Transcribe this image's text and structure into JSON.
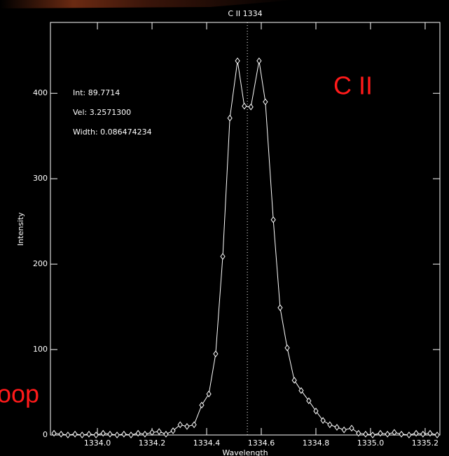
{
  "chart_data": {
    "type": "line",
    "title": "C II 1334",
    "xlabel": "Wavelength",
    "ylabel": "Intensity",
    "annotations": [
      "Int: 89.7714",
      "Vel: 3.2571300",
      "Width: 0.086474234"
    ],
    "overlay_texts": [
      "C II",
      "oop"
    ],
    "x": [
      1333.841,
      1333.867,
      1333.892,
      1333.918,
      1333.944,
      1333.969,
      1333.995,
      1334.021,
      1334.046,
      1334.072,
      1334.097,
      1334.123,
      1334.149,
      1334.174,
      1334.2,
      1334.226,
      1334.251,
      1334.277,
      1334.303,
      1334.328,
      1334.354,
      1334.382,
      1334.408,
      1334.433,
      1334.459,
      1334.485,
      1334.513,
      1334.538,
      1334.562,
      1334.592,
      1334.615,
      1334.644,
      1334.669,
      1334.695,
      1334.721,
      1334.746,
      1334.774,
      1334.8,
      1334.826,
      1334.851,
      1334.877,
      1334.903,
      1334.931,
      1334.956,
      1334.982,
      1335.008,
      1335.036,
      1335.062,
      1335.087,
      1335.113,
      1335.141,
      1335.167,
      1335.192,
      1335.218,
      1335.244
    ],
    "series": [
      {
        "color": "#ffffff",
        "values": [
          2,
          1,
          0,
          1,
          0,
          1,
          0,
          2,
          1,
          0,
          1,
          0,
          2,
          1,
          3,
          4,
          1,
          5,
          12,
          10,
          12,
          35,
          48,
          95,
          209,
          371,
          438,
          385,
          384,
          438,
          390,
          252,
          149,
          102,
          64,
          52,
          40,
          28,
          17,
          12,
          9,
          6,
          8,
          2,
          1,
          0,
          2,
          1,
          3,
          1,
          0,
          2,
          1,
          2,
          0
        ]
      }
    ],
    "vline": 1334.549,
    "xlim": [
      1333.828,
      1335.254
    ],
    "ylim": [
      0,
      483
    ],
    "xticks": [
      {
        "value": 1334.0,
        "label": "1334.0"
      },
      1334.2,
      1334.4,
      1334.6,
      1334.8,
      {
        "value": 1335.0,
        "label": "1335.0"
      },
      1335.2
    ],
    "yticks": [
      0,
      100,
      200,
      300,
      400
    ]
  }
}
